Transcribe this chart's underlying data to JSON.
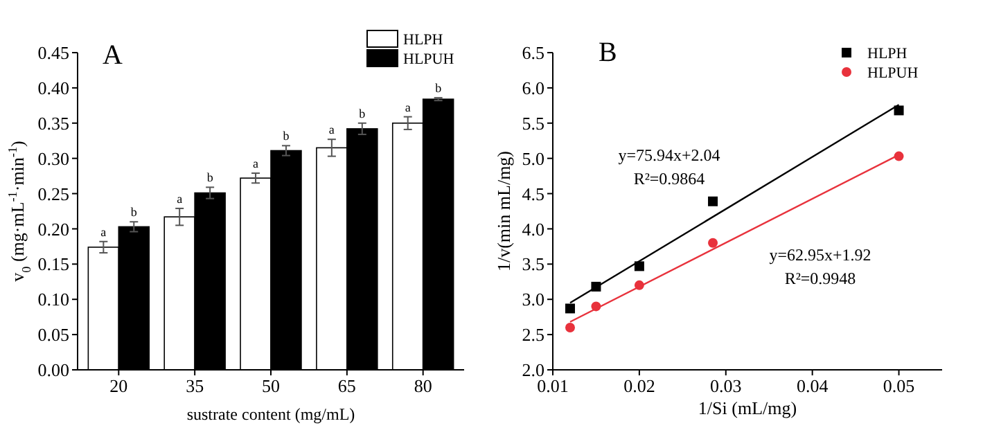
{
  "chart_data": [
    {
      "type": "bar",
      "title": "A",
      "xlabel": "sustrate content (mg/mL)",
      "ylabel": "v$_{0}$ (mg·mL$^{-1}$·min$^{-1}$)",
      "categories": [
        "20",
        "35",
        "50",
        "65",
        "80"
      ],
      "series": [
        {
          "name": "HLPH",
          "color": "#ffffff",
          "values": [
            0.174,
            0.217,
            0.272,
            0.315,
            0.35
          ],
          "errors": [
            0.008,
            0.012,
            0.007,
            0.012,
            0.009
          ]
        },
        {
          "name": "HLPUH",
          "color": "#000000",
          "values": [
            0.203,
            0.251,
            0.311,
            0.342,
            0.384
          ],
          "errors": [
            0.007,
            0.008,
            0.007,
            0.008,
            0.002
          ]
        }
      ],
      "ylim": [
        0,
        0.45
      ],
      "yticks": [
        {
          "value": 0,
          "label": "0.00"
        },
        {
          "value": 0.05,
          "label": "0.05"
        },
        {
          "value": 0.1,
          "label": "0.10"
        },
        {
          "value": 0.15,
          "label": "0.15"
        },
        {
          "value": 0.2,
          "label": "0.20"
        },
        {
          "value": 0.25,
          "label": "0.25"
        },
        {
          "value": 0.3,
          "label": "0.30"
        },
        {
          "value": 0.35,
          "label": "0.35"
        },
        {
          "value": 0.4,
          "label": "0.40"
        },
        {
          "value": 0.45,
          "label": "0.45"
        }
      ],
      "legend": "top right",
      "grid": false,
      "annotations": [
        "a",
        "b",
        "a",
        "b",
        "a",
        "b",
        "a",
        "b",
        "a",
        "b"
      ]
    },
    {
      "type": "scatter",
      "title": "B",
      "xlabel": "1/Si (mL/mg)",
      "ylabel": "1/v(min mL/mg)",
      "xlim": [
        0.01,
        0.055
      ],
      "xticks": [
        0.01,
        0.02,
        0.03,
        0.04,
        0.05
      ],
      "ylim": [
        2.0,
        6.5
      ],
      "yticks": [
        {
          "value": 2,
          "label": "2.0"
        },
        {
          "value": 2.5,
          "label": "2.5"
        },
        {
          "value": 3,
          "label": "3.0"
        },
        {
          "value": 3.5,
          "label": "3.5"
        },
        {
          "value": 4,
          "label": "4.0"
        },
        {
          "value": 4.5,
          "label": "4.5"
        },
        {
          "value": 5,
          "label": "5.0"
        },
        {
          "value": 5.5,
          "label": "5.5"
        },
        {
          "value": 6,
          "label": "6.0"
        },
        {
          "value": 6.5,
          "label": "6.5"
        }
      ],
      "series": [
        {
          "name": "HLPH",
          "color": "#000000",
          "marker": "square",
          "x": [
            0.012,
            0.015,
            0.02,
            0.0285,
            0.05
          ],
          "values": [
            2.87,
            3.18,
            3.47,
            4.39,
            5.68
          ]
        },
        {
          "name": "HLPUH",
          "color": "#e8323c",
          "marker": "circle",
          "x": [
            0.012,
            0.015,
            0.02,
            0.0285,
            0.05
          ],
          "values": [
            2.6,
            2.9,
            3.2,
            3.8,
            5.03
          ]
        },
        {
          "type": "line",
          "color": "#000000",
          "x": [
            0.012,
            0.05
          ],
          "values": [
            2.95,
            5.76
          ]
        },
        {
          "type": "line",
          "color": "#e8323c",
          "x": [
            0.012,
            0.05
          ],
          "values": [
            2.68,
            5.05
          ]
        }
      ],
      "legend": "top right",
      "grid": false,
      "annotations": [
        "y=75.94x+2.04",
        "R²=0.9864",
        "y=62.95x+1.92",
        "R²=0.9948"
      ]
    }
  ]
}
